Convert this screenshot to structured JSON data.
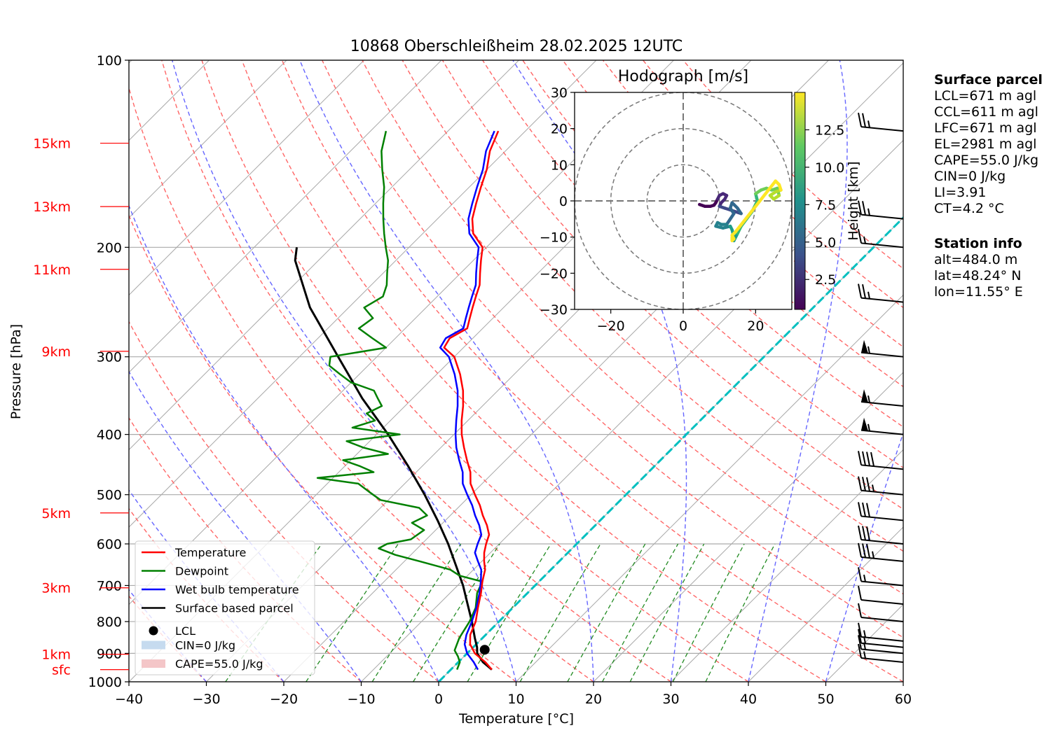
{
  "chart_data": {
    "type": "line",
    "title": "10868 Oberschleißheim 28.02.2025 12UTC",
    "xlabel": "Temperature [°C]",
    "ylabel": "Pressure [hPa]",
    "xlim": [
      -40,
      60
    ],
    "ylim": [
      1000,
      100
    ],
    "y_scale": "log",
    "x_ticks": [
      "−40",
      "−30",
      "−20",
      "−10",
      "0",
      "10",
      "20",
      "30",
      "40",
      "50",
      "60"
    ],
    "y_ticks": [
      "100",
      "200",
      "300",
      "400",
      "500",
      "600",
      "700",
      "800",
      "900",
      "1000"
    ],
    "height_labels": [
      {
        "label": "15km",
        "p": 136
      },
      {
        "label": "13km",
        "p": 172
      },
      {
        "label": "11km",
        "p": 217
      },
      {
        "label": "9km",
        "p": 294
      },
      {
        "label": "5km",
        "p": 535
      },
      {
        "label": "3km",
        "p": 706
      },
      {
        "label": "1km",
        "p": 903
      },
      {
        "label": "sfc",
        "p": 956
      }
    ],
    "legend": {
      "placement": "lower-left",
      "entries": [
        {
          "label": "Temperature",
          "color": "#ff0000",
          "kind": "line"
        },
        {
          "label": "Dewpoint",
          "color": "#008000",
          "kind": "line"
        },
        {
          "label": "Wet bulb temperature",
          "color": "#0000ff",
          "kind": "line"
        },
        {
          "label": "Surface based parcel",
          "color": "#000000",
          "kind": "line"
        },
        {
          "label": "LCL",
          "color": "#000000",
          "kind": "dot"
        },
        {
          "label": "CIN=0 J/kg",
          "color": "#c6dbef",
          "kind": "patch"
        },
        {
          "label": "CAPE=55.0 J/kg",
          "color": "#f4c6c8",
          "kind": "patch"
        }
      ]
    },
    "series": [
      {
        "name": "Temperature",
        "color": "#ff0000",
        "points": [
          [
            956,
            5.3
          ],
          [
            930,
            3.5
          ],
          [
            900,
            1.0
          ],
          [
            870,
            -0.8
          ],
          [
            840,
            -2.0
          ],
          [
            800,
            -3.0
          ],
          [
            760,
            -4.5
          ],
          [
            720,
            -6.0
          ],
          [
            690,
            -7.3
          ],
          [
            660,
            -8.5
          ],
          [
            640,
            -9.7
          ],
          [
            620,
            -10.8
          ],
          [
            600,
            -11.7
          ],
          [
            580,
            -12.5
          ],
          [
            560,
            -14.0
          ],
          [
            540,
            -15.8
          ],
          [
            520,
            -17.5
          ],
          [
            500,
            -19.5
          ],
          [
            480,
            -21.5
          ],
          [
            460,
            -23.0
          ],
          [
            440,
            -25.0
          ],
          [
            420,
            -27.0
          ],
          [
            400,
            -29.0
          ],
          [
            380,
            -30.8
          ],
          [
            360,
            -32.5
          ],
          [
            340,
            -34.5
          ],
          [
            320,
            -37.0
          ],
          [
            300,
            -40.0
          ],
          [
            290,
            -42.5
          ],
          [
            280,
            -43.0
          ],
          [
            270,
            -42.0
          ],
          [
            260,
            -43.0
          ],
          [
            250,
            -44.0
          ],
          [
            240,
            -45.0
          ],
          [
            230,
            -46.0
          ],
          [
            220,
            -47.5
          ],
          [
            210,
            -49.0
          ],
          [
            200,
            -50.5
          ],
          [
            190,
            -53.5
          ],
          [
            180,
            -55.5
          ],
          [
            170,
            -57.0
          ],
          [
            160,
            -58.5
          ],
          [
            150,
            -60.0
          ],
          [
            140,
            -62.0
          ],
          [
            130,
            -63.5
          ]
        ]
      },
      {
        "name": "Dewpoint",
        "color": "#008000",
        "points": [
          [
            956,
            0.8
          ],
          [
            930,
            0.2
          ],
          [
            910,
            -0.8
          ],
          [
            890,
            -2.0
          ],
          [
            870,
            -2.5
          ],
          [
            850,
            -3.0
          ],
          [
            800,
            -3.8
          ],
          [
            760,
            -4.8
          ],
          [
            720,
            -6.5
          ],
          [
            690,
            -7.3
          ],
          [
            675,
            -11.0
          ],
          [
            660,
            -13.0
          ],
          [
            640,
            -18.0
          ],
          [
            625,
            -22.0
          ],
          [
            610,
            -25.0
          ],
          [
            600,
            -24.5
          ],
          [
            590,
            -22.0
          ],
          [
            570,
            -21.5
          ],
          [
            555,
            -24.0
          ],
          [
            540,
            -23.0
          ],
          [
            525,
            -25.0
          ],
          [
            510,
            -31.0
          ],
          [
            495,
            -33.5
          ],
          [
            480,
            -36.0
          ],
          [
            470,
            -42.0
          ],
          [
            460,
            -35.5
          ],
          [
            450,
            -38.0
          ],
          [
            440,
            -41.0
          ],
          [
            430,
            -36.0
          ],
          [
            420,
            -40.0
          ],
          [
            410,
            -43.0
          ],
          [
            400,
            -37.0
          ],
          [
            390,
            -44.0
          ],
          [
            380,
            -42.0
          ],
          [
            370,
            -44.0
          ],
          [
            360,
            -43.0
          ],
          [
            350,
            -44.5
          ],
          [
            340,
            -46.0
          ],
          [
            330,
            -50.0
          ],
          [
            320,
            -52.5
          ],
          [
            310,
            -55.0
          ],
          [
            300,
            -56.0
          ],
          [
            290,
            -50.0
          ],
          [
            280,
            -53.0
          ],
          [
            270,
            -56.0
          ],
          [
            260,
            -55.5
          ],
          [
            250,
            -58.0
          ],
          [
            240,
            -57.0
          ],
          [
            230,
            -58.0
          ],
          [
            220,
            -59.5
          ],
          [
            210,
            -61.0
          ],
          [
            200,
            -63.0
          ],
          [
            190,
            -65.0
          ],
          [
            180,
            -67.0
          ],
          [
            170,
            -69.0
          ],
          [
            160,
            -71.0
          ],
          [
            150,
            -73.5
          ],
          [
            140,
            -76.0
          ],
          [
            130,
            -78.0
          ]
        ]
      },
      {
        "name": "Wet bulb temperature",
        "color": "#0000ff",
        "points": [
          [
            956,
            3.5
          ],
          [
            930,
            2.0
          ],
          [
            900,
            0.0
          ],
          [
            870,
            -1.5
          ],
          [
            840,
            -2.5
          ],
          [
            800,
            -3.5
          ],
          [
            760,
            -4.7
          ],
          [
            720,
            -6.2
          ],
          [
            690,
            -7.5
          ],
          [
            660,
            -9.0
          ],
          [
            640,
            -10.5
          ],
          [
            620,
            -12.0
          ],
          [
            600,
            -12.8
          ],
          [
            580,
            -13.5
          ],
          [
            560,
            -15.0
          ],
          [
            540,
            -16.8
          ],
          [
            520,
            -18.5
          ],
          [
            500,
            -20.5
          ],
          [
            480,
            -22.5
          ],
          [
            460,
            -24.0
          ],
          [
            440,
            -26.0
          ],
          [
            420,
            -28.0
          ],
          [
            400,
            -29.8
          ],
          [
            380,
            -31.5
          ],
          [
            360,
            -33.2
          ],
          [
            340,
            -35.2
          ],
          [
            320,
            -37.7
          ],
          [
            300,
            -40.7
          ],
          [
            290,
            -43.0
          ],
          [
            280,
            -43.5
          ],
          [
            270,
            -42.5
          ],
          [
            260,
            -43.5
          ],
          [
            250,
            -44.5
          ],
          [
            240,
            -45.5
          ],
          [
            230,
            -46.5
          ],
          [
            220,
            -48.0
          ],
          [
            210,
            -49.5
          ],
          [
            200,
            -51.0
          ],
          [
            190,
            -54.0
          ],
          [
            180,
            -56.0
          ],
          [
            170,
            -57.5
          ],
          [
            160,
            -59.0
          ],
          [
            150,
            -60.5
          ],
          [
            140,
            -62.5
          ],
          [
            130,
            -64.0
          ]
        ]
      },
      {
        "name": "Surface based parcel",
        "color": "#000000",
        "points": [
          [
            956,
            5.3
          ],
          [
            930,
            3.2
          ],
          [
            900,
            1.3
          ],
          [
            880,
            0.5
          ],
          [
            850,
            -1.0
          ],
          [
            800,
            -3.5
          ],
          [
            750,
            -6.3
          ],
          [
            700,
            -9.3
          ],
          [
            650,
            -12.8
          ],
          [
            600,
            -16.6
          ],
          [
            550,
            -21.0
          ],
          [
            500,
            -26.0
          ],
          [
            450,
            -31.8
          ],
          [
            400,
            -38.5
          ],
          [
            350,
            -46.5
          ],
          [
            300,
            -55.0
          ],
          [
            250,
            -65.0
          ],
          [
            210,
            -73.0
          ],
          [
            200,
            -74.5
          ]
        ]
      }
    ],
    "lcl": {
      "p": 888,
      "t": 1.8
    },
    "hodograph": {
      "title": "Hodograph [m/s]",
      "xlim": [
        -30,
        30
      ],
      "ylim": [
        -30,
        30
      ],
      "x_ticks": [
        "−20",
        "0",
        "20"
      ],
      "y_ticks": [
        "30",
        "20",
        "10",
        "0",
        "−10",
        "−20",
        "−30"
      ],
      "rings": [
        10,
        20,
        30
      ],
      "colorbar_label": "Height [km]",
      "colorbar_ticks": [
        "2.5",
        "5.0",
        "7.5",
        "10.0",
        "12.5"
      ],
      "height_range": [
        0.5,
        15
      ],
      "points": [
        [
          4.5,
          -1,
          0.5
        ],
        [
          6,
          -1.5,
          0.8
        ],
        [
          7.5,
          -1.5,
          1.0
        ],
        [
          8.5,
          -1.2,
          1.3
        ],
        [
          9,
          -0.5,
          1.6
        ],
        [
          9.5,
          0.5,
          1.9
        ],
        [
          10,
          1.5,
          2.1
        ],
        [
          11,
          2,
          2.3
        ],
        [
          12,
          1.5,
          2.6
        ],
        [
          11.5,
          0.5,
          2.9
        ],
        [
          10.5,
          -0.5,
          3.1
        ],
        [
          10,
          -1.5,
          3.4
        ],
        [
          11.5,
          -2,
          3.7
        ],
        [
          13,
          -2.5,
          4.0
        ],
        [
          14.5,
          -3,
          4.3
        ],
        [
          16,
          -3.5,
          4.6
        ],
        [
          15,
          -2,
          4.9
        ],
        [
          13.5,
          -0.5,
          5.2
        ],
        [
          13,
          -2,
          5.5
        ],
        [
          14,
          -3.5,
          5.7
        ],
        [
          13,
          -5,
          6.0
        ],
        [
          12,
          -6.5,
          6.3
        ],
        [
          10.5,
          -6.5,
          6.6
        ],
        [
          9.5,
          -6,
          6.9
        ],
        [
          9,
          -7,
          7.1
        ],
        [
          11,
          -7.5,
          7.4
        ],
        [
          13,
          -7,
          7.7
        ],
        [
          13.5,
          -8,
          8.0
        ],
        [
          14,
          -10,
          8.3
        ],
        [
          13.5,
          -10.5,
          8.5
        ],
        [
          14,
          -11,
          8.8
        ],
        [
          15,
          -9,
          9.1
        ],
        [
          16,
          -7,
          9.4
        ],
        [
          17.5,
          -5,
          9.7
        ],
        [
          19,
          -3,
          10.0
        ],
        [
          20.5,
          0,
          10.3
        ],
        [
          20,
          2,
          10.6
        ],
        [
          21.5,
          3,
          10.9
        ],
        [
          23,
          3.5,
          11.2
        ],
        [
          24.5,
          3,
          11.5
        ],
        [
          26,
          3.5,
          11.8
        ],
        [
          26.5,
          1.5,
          12.1
        ],
        [
          25,
          0.5,
          12.4
        ],
        [
          24,
          1.5,
          12.7
        ],
        [
          25.5,
          2.5,
          13.0
        ],
        [
          27,
          3,
          13.3
        ],
        [
          26.5,
          4.5,
          13.6
        ],
        [
          25.5,
          5.5,
          13.9
        ],
        [
          14.5,
          -8.5,
          14.1
        ],
        [
          13.5,
          -9.5,
          14.3
        ],
        [
          14,
          -10.5,
          14.5
        ],
        [
          13.5,
          -11,
          14.6
        ],
        [
          13.5,
          -10,
          14.8
        ]
      ]
    },
    "wind_barbs": [
      {
        "p": 130,
        "speed_kt": 25,
        "dir": "w"
      },
      {
        "p": 180,
        "speed_kt": 25,
        "dir": "w"
      },
      {
        "p": 200,
        "speed_kt": 15,
        "dir": "w"
      },
      {
        "p": 245,
        "speed_kt": 25,
        "dir": "w"
      },
      {
        "p": 300,
        "speed_kt": 55,
        "dir": "w"
      },
      {
        "p": 360,
        "speed_kt": 55,
        "dir": "w"
      },
      {
        "p": 400,
        "speed_kt": 55,
        "dir": "w"
      },
      {
        "p": 455,
        "speed_kt": 40,
        "dir": "w"
      },
      {
        "p": 500,
        "speed_kt": 35,
        "dir": "w"
      },
      {
        "p": 550,
        "speed_kt": 30,
        "dir": "w"
      },
      {
        "p": 600,
        "speed_kt": 30,
        "dir": "w"
      },
      {
        "p": 640,
        "speed_kt": 35,
        "dir": "w"
      },
      {
        "p": 700,
        "speed_kt": 15,
        "dir": "w"
      },
      {
        "p": 750,
        "speed_kt": 10,
        "dir": "w"
      },
      {
        "p": 800,
        "speed_kt": 10,
        "dir": "w"
      },
      {
        "p": 860,
        "speed_kt": 15,
        "dir": "w"
      },
      {
        "p": 880,
        "speed_kt": 15,
        "dir": "w"
      },
      {
        "p": 900,
        "speed_kt": 15,
        "dir": "w"
      },
      {
        "p": 930,
        "speed_kt": 15,
        "dir": "w"
      }
    ],
    "grid": true
  },
  "panel": {
    "surface_title": "Surface parcel",
    "surface_lines": [
      "LCL=671 m agl",
      "CCL=611 m agl",
      "LFC=671 m agl",
      "EL=2981 m agl",
      "CAPE=55.0 J/kg",
      "CIN=0 J/kg",
      "LI=3.91",
      "CT=4.2 °C"
    ],
    "station_title": "Station info",
    "station_lines": [
      "alt=484.0 m",
      "lat=48.24° N",
      "lon=11.55° E"
    ]
  },
  "colors": {
    "temperature": "#ff0000",
    "dewpoint": "#008000",
    "wetbulb": "#0000ff",
    "parcel": "#000000",
    "moist_adiabat": "#6666ff",
    "dry_adiabat": "#ff6666",
    "mixing_ratio": "#228b22",
    "isotherm": "#aaaaaa",
    "zero_isotherm": "#00bfbf"
  }
}
